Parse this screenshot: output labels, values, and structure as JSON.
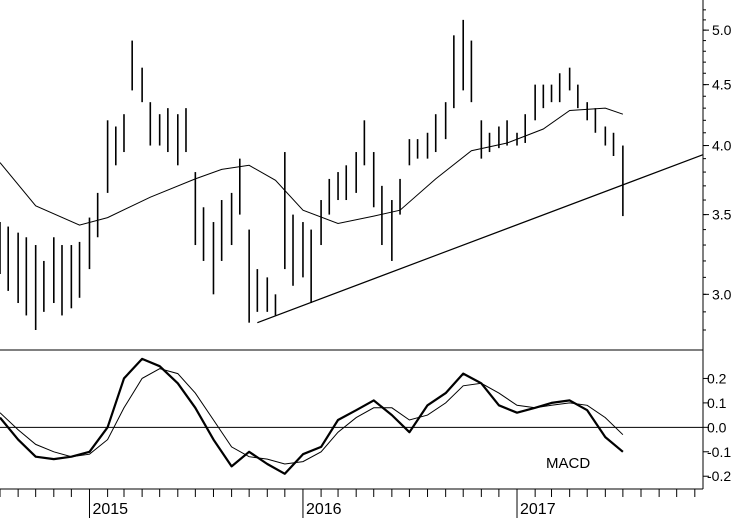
{
  "chart_data": [
    {
      "type": "bar",
      "subtype": "ohlc-weekly",
      "title": "",
      "y_tick_labels": [
        "3.0",
        "3.5",
        "4.0",
        "4.5",
        "5.0"
      ],
      "ylim": [
        2.72,
        5.3
      ],
      "y_scale": "log",
      "xlim": [
        "2014-08-01",
        "2017-11-15"
      ],
      "x_tick_labels": [
        "2015",
        "2016",
        "2017"
      ],
      "moving_average": [
        {
          "date": "2014-08-01",
          "value": 3.87
        },
        {
          "date": "2014-10-01",
          "value": 3.56
        },
        {
          "date": "2014-12-15",
          "value": 3.43
        },
        {
          "date": "2015-02-01",
          "value": 3.48
        },
        {
          "date": "2015-04-15",
          "value": 3.62
        },
        {
          "date": "2015-07-01",
          "value": 3.75
        },
        {
          "date": "2015-08-15",
          "value": 3.82
        },
        {
          "date": "2015-10-01",
          "value": 3.85
        },
        {
          "date": "2015-11-15",
          "value": 3.74
        },
        {
          "date": "2016-01-01",
          "value": 3.53
        },
        {
          "date": "2016-03-01",
          "value": 3.44
        },
        {
          "date": "2016-05-01",
          "value": 3.49
        },
        {
          "date": "2016-06-15",
          "value": 3.53
        },
        {
          "date": "2016-08-15",
          "value": 3.75
        },
        {
          "date": "2016-10-15",
          "value": 3.96
        },
        {
          "date": "2016-12-15",
          "value": 4.02
        },
        {
          "date": "2017-02-15",
          "value": 4.13
        },
        {
          "date": "2017-04-01",
          "value": 4.28
        },
        {
          "date": "2017-06-01",
          "value": 4.3
        },
        {
          "date": "2017-07-01",
          "value": 4.25
        }
      ],
      "trendline": [
        {
          "date": "2015-10-15",
          "value": 2.84
        },
        {
          "date": "2017-11-15",
          "value": 3.93
        }
      ],
      "ohlc": [
        {
          "date": "2014-08-01",
          "high": 3.45,
          "low": 3.12
        },
        {
          "date": "2014-08-15",
          "high": 3.42,
          "low": 3.02
        },
        {
          "date": "2014-09-01",
          "high": 3.38,
          "low": 2.95
        },
        {
          "date": "2014-09-15",
          "high": 3.35,
          "low": 2.88
        },
        {
          "date": "2014-10-01",
          "high": 3.3,
          "low": 2.8
        },
        {
          "date": "2014-10-15",
          "high": 3.2,
          "low": 2.9
        },
        {
          "date": "2014-11-01",
          "high": 3.35,
          "low": 2.95
        },
        {
          "date": "2014-11-15",
          "high": 3.3,
          "low": 2.88
        },
        {
          "date": "2014-12-01",
          "high": 3.3,
          "low": 2.92
        },
        {
          "date": "2014-12-15",
          "high": 3.32,
          "low": 2.98
        },
        {
          "date": "2015-01-01",
          "high": 3.48,
          "low": 3.15
        },
        {
          "date": "2015-01-15",
          "high": 3.65,
          "low": 3.35
        },
        {
          "date": "2015-02-01",
          "high": 4.2,
          "low": 3.65
        },
        {
          "date": "2015-02-15",
          "high": 4.15,
          "low": 3.85
        },
        {
          "date": "2015-03-01",
          "high": 4.25,
          "low": 3.95
        },
        {
          "date": "2015-03-15",
          "high": 4.9,
          "low": 4.45
        },
        {
          "date": "2015-04-01",
          "high": 4.65,
          "low": 4.35
        },
        {
          "date": "2015-04-15",
          "high": 4.35,
          "low": 4.0
        },
        {
          "date": "2015-05-01",
          "high": 4.25,
          "low": 4.0
        },
        {
          "date": "2015-05-15",
          "high": 4.3,
          "low": 3.95
        },
        {
          "date": "2015-06-01",
          "high": 4.25,
          "low": 3.85
        },
        {
          "date": "2015-06-15",
          "high": 4.3,
          "low": 3.95
        },
        {
          "date": "2015-07-01",
          "high": 3.8,
          "low": 3.3
        },
        {
          "date": "2015-07-15",
          "high": 3.55,
          "low": 3.2
        },
        {
          "date": "2015-08-01",
          "high": 3.45,
          "low": 3.0
        },
        {
          "date": "2015-08-15",
          "high": 3.6,
          "low": 3.2
        },
        {
          "date": "2015-09-01",
          "high": 3.65,
          "low": 3.3
        },
        {
          "date": "2015-09-15",
          "high": 3.9,
          "low": 3.5
        },
        {
          "date": "2015-10-01",
          "high": 3.4,
          "low": 2.84
        },
        {
          "date": "2015-10-15",
          "high": 3.15,
          "low": 2.9
        },
        {
          "date": "2015-11-01",
          "high": 3.1,
          "low": 2.9
        },
        {
          "date": "2015-11-15",
          "high": 3.0,
          "low": 2.88
        },
        {
          "date": "2015-12-01",
          "high": 3.95,
          "low": 3.15
        },
        {
          "date": "2015-12-15",
          "high": 3.5,
          "low": 3.05
        },
        {
          "date": "2016-01-01",
          "high": 3.45,
          "low": 3.1
        },
        {
          "date": "2016-01-15",
          "high": 3.4,
          "low": 2.95
        },
        {
          "date": "2016-02-01",
          "high": 3.6,
          "low": 3.3
        },
        {
          "date": "2016-02-15",
          "high": 3.75,
          "low": 3.5
        },
        {
          "date": "2016-03-01",
          "high": 3.8,
          "low": 3.6
        },
        {
          "date": "2016-03-15",
          "high": 3.85,
          "low": 3.6
        },
        {
          "date": "2016-04-01",
          "high": 3.95,
          "low": 3.65
        },
        {
          "date": "2016-04-15",
          "high": 4.2,
          "low": 3.85
        },
        {
          "date": "2016-05-01",
          "high": 3.95,
          "low": 3.55
        },
        {
          "date": "2016-05-15",
          "high": 3.7,
          "low": 3.3
        },
        {
          "date": "2016-06-01",
          "high": 3.6,
          "low": 3.2
        },
        {
          "date": "2016-06-15",
          "high": 3.75,
          "low": 3.5
        },
        {
          "date": "2016-07-01",
          "high": 4.05,
          "low": 3.85
        },
        {
          "date": "2016-07-15",
          "high": 4.05,
          "low": 3.9
        },
        {
          "date": "2016-08-01",
          "high": 4.1,
          "low": 3.9
        },
        {
          "date": "2016-08-15",
          "high": 4.25,
          "low": 3.95
        },
        {
          "date": "2016-09-01",
          "high": 4.35,
          "low": 4.05
        },
        {
          "date": "2016-09-15",
          "high": 4.95,
          "low": 4.3
        },
        {
          "date": "2016-10-01",
          "high": 5.1,
          "low": 4.45
        },
        {
          "date": "2016-10-15",
          "high": 4.9,
          "low": 4.35
        },
        {
          "date": "2016-11-01",
          "high": 4.2,
          "low": 3.9
        },
        {
          "date": "2016-11-15",
          "high": 4.1,
          "low": 3.95
        },
        {
          "date": "2016-12-01",
          "high": 4.15,
          "low": 3.98
        },
        {
          "date": "2016-12-15",
          "high": 4.2,
          "low": 4.0
        },
        {
          "date": "2017-01-01",
          "high": 4.1,
          "low": 4.0
        },
        {
          "date": "2017-01-15",
          "high": 4.25,
          "low": 4.02
        },
        {
          "date": "2017-02-01",
          "high": 4.5,
          "low": 4.2
        },
        {
          "date": "2017-02-15",
          "high": 4.5,
          "low": 4.3
        },
        {
          "date": "2017-03-01",
          "high": 4.5,
          "low": 4.35
        },
        {
          "date": "2017-03-15",
          "high": 4.6,
          "low": 4.35
        },
        {
          "date": "2017-04-01",
          "high": 4.65,
          "low": 4.45
        },
        {
          "date": "2017-04-15",
          "high": 4.5,
          "low": 4.3
        },
        {
          "date": "2017-05-01",
          "high": 4.35,
          "low": 4.2
        },
        {
          "date": "2017-05-15",
          "high": 4.3,
          "low": 4.1
        },
        {
          "date": "2017-06-01",
          "high": 4.15,
          "low": 4.0
        },
        {
          "date": "2017-06-15",
          "high": 4.1,
          "low": 3.92
        },
        {
          "date": "2017-07-01",
          "high": 4.0,
          "low": 3.49
        }
      ]
    },
    {
      "type": "line",
      "subtype": "macd",
      "annotation": "MACD",
      "y_tick_labels": [
        "-0.2",
        "-0.1",
        "0.0",
        "0.1",
        "0.2"
      ],
      "ylim": [
        -0.24,
        0.3
      ],
      "zero_line": true,
      "series": [
        {
          "style": "thick",
          "x": [
            "2014-08-01",
            "2014-09-01",
            "2014-10-01",
            "2014-11-01",
            "2014-12-01",
            "2015-01-01",
            "2015-02-01",
            "2015-03-01",
            "2015-04-01",
            "2015-05-01",
            "2015-06-01",
            "2015-07-01",
            "2015-08-01",
            "2015-09-01",
            "2015-10-01",
            "2015-11-01",
            "2015-12-01",
            "2016-01-01",
            "2016-02-01",
            "2016-03-01",
            "2016-04-01",
            "2016-05-01",
            "2016-06-01",
            "2016-07-01",
            "2016-08-01",
            "2016-09-01",
            "2016-10-01",
            "2016-11-01",
            "2016-12-01",
            "2017-01-01",
            "2017-02-01",
            "2017-03-01",
            "2017-04-01",
            "2017-05-01",
            "2017-06-01",
            "2017-07-01"
          ],
          "values": [
            0.04,
            -0.05,
            -0.12,
            -0.13,
            -0.12,
            -0.1,
            0.0,
            0.2,
            0.28,
            0.25,
            0.18,
            0.08,
            -0.05,
            -0.16,
            -0.1,
            -0.15,
            -0.19,
            -0.11,
            -0.08,
            0.03,
            0.07,
            0.11,
            0.05,
            -0.02,
            0.09,
            0.14,
            0.22,
            0.18,
            0.09,
            0.06,
            0.08,
            0.1,
            0.11,
            0.07,
            -0.04,
            -0.1
          ]
        },
        {
          "style": "thin",
          "x": [
            "2014-08-01",
            "2014-09-01",
            "2014-10-01",
            "2014-11-01",
            "2014-12-01",
            "2015-01-01",
            "2015-02-01",
            "2015-03-01",
            "2015-04-01",
            "2015-05-01",
            "2015-06-01",
            "2015-07-01",
            "2015-08-01",
            "2015-09-01",
            "2015-10-01",
            "2015-11-01",
            "2015-12-01",
            "2016-01-01",
            "2016-02-01",
            "2016-03-01",
            "2016-04-01",
            "2016-05-01",
            "2016-06-01",
            "2016-07-01",
            "2016-08-01",
            "2016-09-01",
            "2016-10-01",
            "2016-11-01",
            "2016-12-01",
            "2017-01-01",
            "2017-02-01",
            "2017-03-01",
            "2017-04-01",
            "2017-05-01",
            "2017-06-01",
            "2017-07-01"
          ],
          "values": [
            0.06,
            -0.01,
            -0.07,
            -0.1,
            -0.12,
            -0.11,
            -0.05,
            0.08,
            0.2,
            0.24,
            0.22,
            0.14,
            0.03,
            -0.08,
            -0.12,
            -0.13,
            -0.15,
            -0.14,
            -0.1,
            -0.02,
            0.04,
            0.08,
            0.08,
            0.03,
            0.05,
            0.1,
            0.17,
            0.18,
            0.14,
            0.09,
            0.08,
            0.09,
            0.1,
            0.09,
            0.04,
            -0.03
          ]
        }
      ]
    }
  ]
}
